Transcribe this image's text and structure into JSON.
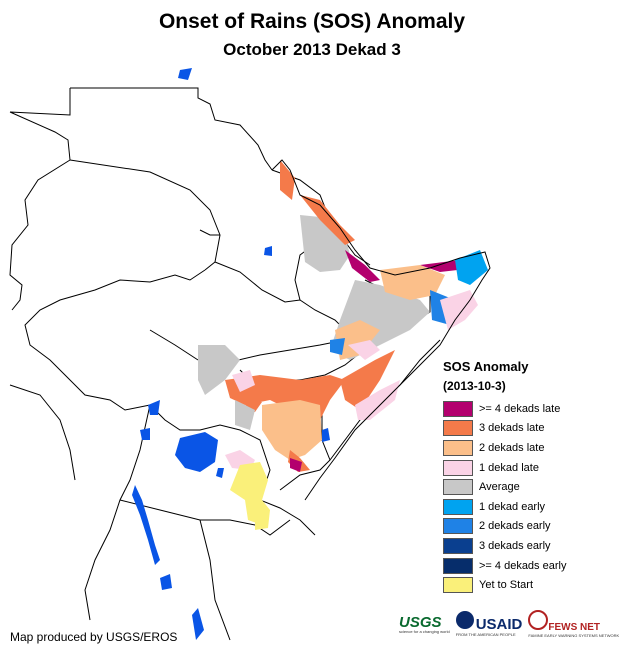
{
  "title": "Onset of Rains (SOS) Anomaly",
  "subtitle": "October 2013 Dekad 3",
  "legend": {
    "title": "SOS Anomaly",
    "date": "(2013-10-3)",
    "items": [
      {
        "label": ">= 4 dekads late",
        "color": "#b3006e"
      },
      {
        "label": "3 dekads late",
        "color": "#f47a4a"
      },
      {
        "label": "2 dekads late",
        "color": "#fbbf8a"
      },
      {
        "label": "1 dekad late",
        "color": "#fad3e6"
      },
      {
        "label": "Average",
        "color": "#c8c8c8"
      },
      {
        "label": "1 dekad early",
        "color": "#00a3f0"
      },
      {
        "label": "2 dekads early",
        "color": "#1f82e6"
      },
      {
        "label": "3 dekads early",
        "color": "#0a3f8f"
      },
      {
        "label": ">= 4 dekads early",
        "color": "#062d6b"
      },
      {
        "label": "Yet to Start",
        "color": "#faf07a"
      }
    ]
  },
  "credit": "Map produced by USGS/EROS",
  "logos": {
    "usgs": "USGS",
    "usgs_tagline": "science for a changing world",
    "usaid": "USAID",
    "usaid_tagline": "FROM THE AMERICAN PEOPLE",
    "fews": "FEWS NET",
    "fews_tagline": "FAMINE EARLY WARNING SYSTEMS NETWORK"
  },
  "colors": {
    "lake": "#0a55e6",
    "border": "#000000"
  }
}
